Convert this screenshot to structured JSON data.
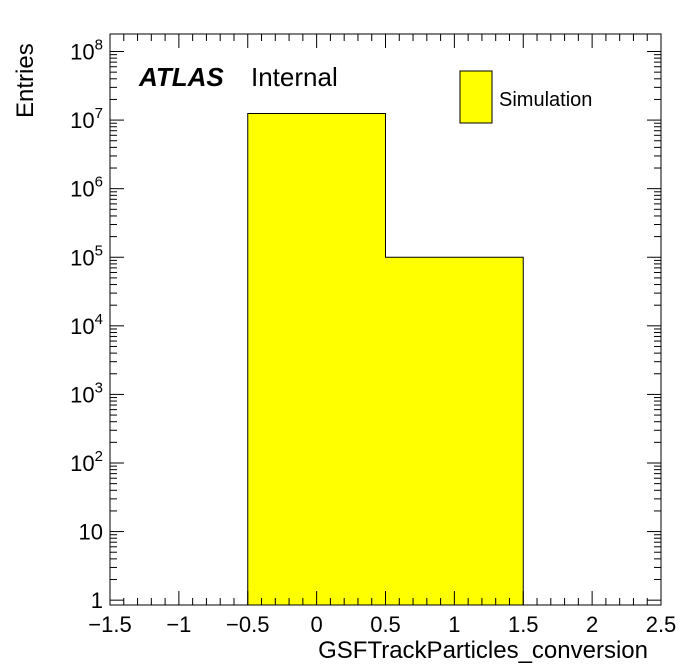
{
  "chart_data": {
    "type": "bar",
    "histogram": true,
    "bins": [
      {
        "low": -0.5,
        "high": 0.5,
        "value": 12500000
      },
      {
        "low": 0.5,
        "high": 1.5,
        "value": 100000
      }
    ],
    "xlim": [
      -1.5,
      2.5
    ],
    "ylim": [
      0.85,
      180000000
    ],
    "yscale": "log",
    "xlabel": "GSFTrackParticles_conversion",
    "ylabel": "Entries",
    "x_ticks": [
      {
        "value": -1.5,
        "label": "−1.5"
      },
      {
        "value": -1,
        "label": "−1"
      },
      {
        "value": -0.5,
        "label": "−0.5"
      },
      {
        "value": 0,
        "label": "0"
      },
      {
        "value": 0.5,
        "label": "0.5"
      },
      {
        "value": 1,
        "label": "1"
      },
      {
        "value": 1.5,
        "label": "1.5"
      },
      {
        "value": 2,
        "label": "2"
      },
      {
        "value": 2.5,
        "label": "2.5"
      }
    ],
    "y_ticks": [
      {
        "value": 1,
        "base": "1",
        "exp": ""
      },
      {
        "value": 10,
        "base": "10",
        "exp": ""
      },
      {
        "value": 100,
        "base": "10",
        "exp": "2"
      },
      {
        "value": 1000,
        "base": "10",
        "exp": "3"
      },
      {
        "value": 10000,
        "base": "10",
        "exp": "4"
      },
      {
        "value": 100000,
        "base": "10",
        "exp": "5"
      },
      {
        "value": 1000000,
        "base": "10",
        "exp": "6"
      },
      {
        "value": 10000000,
        "base": "10",
        "exp": "7"
      },
      {
        "value": 100000000,
        "base": "10",
        "exp": "8"
      }
    ],
    "fill_color": "#ffff00",
    "line_color": "#000000",
    "atlas_label": "ATLAS",
    "atlas_sublabel": "Internal",
    "legend": {
      "entries": [
        {
          "name": "Simulation",
          "color": "#ffff00"
        }
      ],
      "position": "top-right"
    },
    "grid": false
  }
}
